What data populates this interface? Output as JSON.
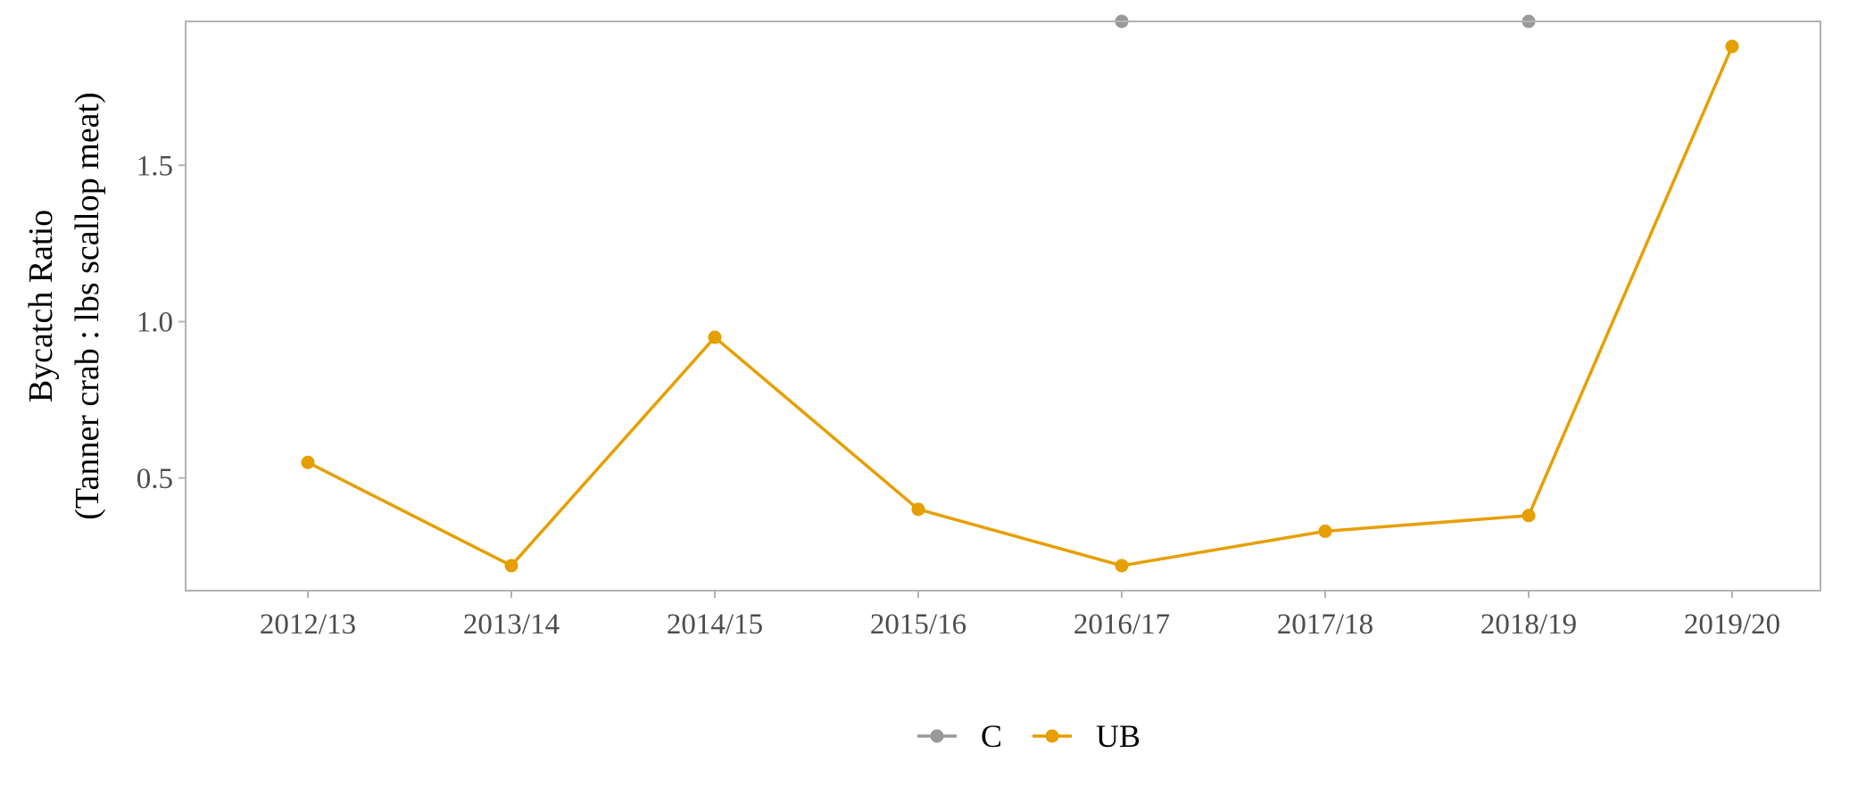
{
  "chart_data": {
    "type": "line",
    "title": "",
    "xlabel": "",
    "ylabel": [
      "Bycatch Ratio",
      "(Tanner crab : lbs scallop meat)"
    ],
    "categories": [
      "2012/13",
      "2013/14",
      "2014/15",
      "2015/16",
      "2016/17",
      "2017/18",
      "2018/19",
      "2019/20"
    ],
    "ylim": [
      0.14,
      1.96
    ],
    "yticks": [
      0.5,
      1.0,
      1.5
    ],
    "ytick_labels": [
      "0.5",
      "1.0",
      "1.5"
    ],
    "grid": false,
    "legend_position": "bottom",
    "series": [
      {
        "name": "C",
        "color": "#999999",
        "values": [
          null,
          null,
          null,
          null,
          1.96,
          null,
          1.96,
          null
        ]
      },
      {
        "name": "UB",
        "color": "#E69F00",
        "values": [
          0.55,
          0.22,
          0.95,
          0.4,
          0.22,
          0.33,
          0.38,
          1.88
        ]
      }
    ]
  }
}
